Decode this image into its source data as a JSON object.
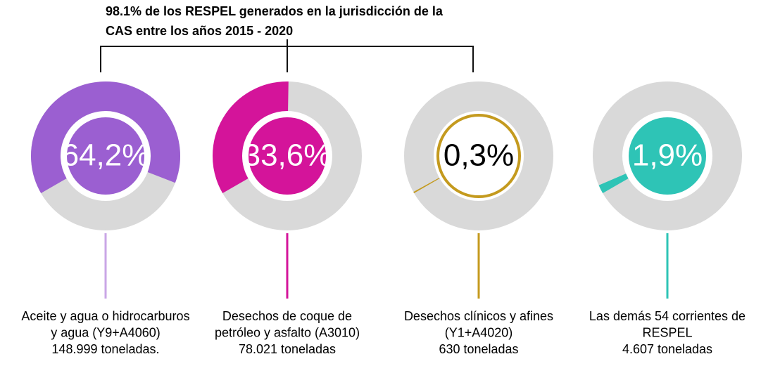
{
  "chart_data": {
    "type": "donut",
    "title": [
      "98.1% de los RESPEL generados en la jurisdicción de la",
      "CAS entre los años 2015 - 2020"
    ],
    "categories": [
      [
        "Aceite y agua o hidrocarburos",
        "y agua (Y9+A4060)",
        "148.999 toneladas."
      ],
      [
        "Desechos de coque de",
        "petróleo y asfalto (A3010)",
        "78.021 toneladas"
      ],
      [
        "Desechos clínicos y afines",
        "(Y1+A4020)",
        "630 toneladas"
      ],
      [
        "Las demás 54 corrientes de",
        "RESPEL",
        "4.607 toneladas"
      ]
    ],
    "values": [
      64.2,
      33.6,
      0.3,
      1.9
    ],
    "value_labels": [
      "64,2%",
      "33,6%",
      "0,3%",
      "1,9%"
    ],
    "colors": [
      "#9b5fd1",
      "#d4149a",
      "#c49a1e",
      "#2ec4b6"
    ],
    "center_fills": [
      "#9b5fd1",
      "#d4149a",
      "#ffffff",
      "#2ec4b6"
    ],
    "center_text_colors": [
      "#ffffff",
      "#ffffff",
      "#000000",
      "#ffffff"
    ],
    "stem_colors": [
      "#c9a6e6",
      "#d4149a",
      "#c49a1e",
      "#2ec4b6"
    ],
    "track_color": "#d9d9d9"
  }
}
